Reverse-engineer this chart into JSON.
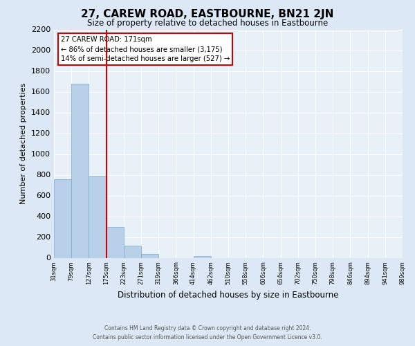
{
  "title": "27, CAREW ROAD, EASTBOURNE, BN21 2JN",
  "subtitle": "Size of property relative to detached houses in Eastbourne",
  "xlabel": "Distribution of detached houses by size in Eastbourne",
  "ylabel": "Number of detached properties",
  "bar_values": [
    760,
    1680,
    790,
    300,
    115,
    38,
    0,
    0,
    20,
    0,
    0,
    0,
    0,
    0,
    0,
    0,
    0,
    0,
    0,
    0
  ],
  "categories": [
    "31sqm",
    "79sqm",
    "127sqm",
    "175sqm",
    "223sqm",
    "271sqm",
    "319sqm",
    "366sqm",
    "414sqm",
    "462sqm",
    "510sqm",
    "558sqm",
    "606sqm",
    "654sqm",
    "702sqm",
    "750sqm",
    "798sqm",
    "846sqm",
    "894sqm",
    "941sqm",
    "989sqm"
  ],
  "bar_color": "#b8d0e8",
  "bar_edge_color": "#7aaad0",
  "vline_x_index": 3,
  "vline_color": "#cc0000",
  "annotation_title": "27 CAREW ROAD: 171sqm",
  "annotation_line1": "← 86% of detached houses are smaller (3,175)",
  "annotation_line2": "14% of semi-detached houses are larger (527) →",
  "ylim": [
    0,
    2200
  ],
  "yticks": [
    0,
    200,
    400,
    600,
    800,
    1000,
    1200,
    1400,
    1600,
    1800,
    2000,
    2200
  ],
  "footer1": "Contains HM Land Registry data © Crown copyright and database right 2024.",
  "footer2": "Contains public sector information licensed under the Open Government Licence v3.0.",
  "bg_color": "#dce8f5",
  "plot_bg_color": "#e8f0f8"
}
